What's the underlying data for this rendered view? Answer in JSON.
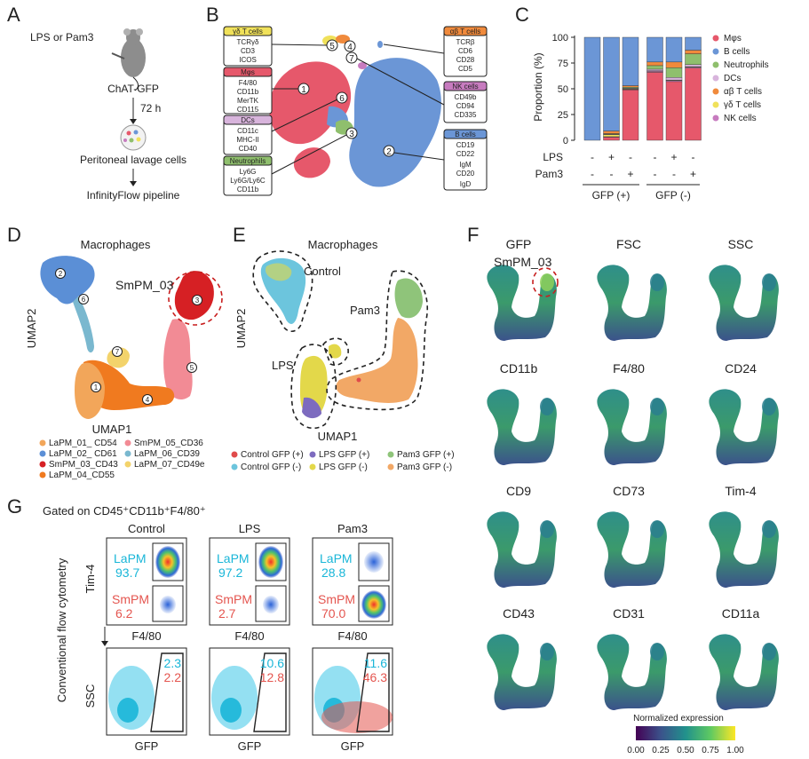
{
  "panel_labels": {
    "A": "A",
    "B": "B",
    "C": "C",
    "D": "D",
    "E": "E",
    "F": "F",
    "G": "G"
  },
  "panelA": {
    "stimulus": "LPS or Pam3",
    "mouse": "ChAT-GFP",
    "time": "72 h",
    "sample": "Peritoneal lavage cells",
    "pipeline": "InfinityFlow pipeline"
  },
  "panelB": {
    "boxes": [
      {
        "title": "γδ T cells",
        "markers": [
          "TCRγδ",
          "CD3",
          "ICOS"
        ],
        "color": "#f0e15a"
      },
      {
        "title": "Mφs",
        "markers": [
          "F4/80",
          "CD11b",
          "MerTK",
          "CD115"
        ],
        "color": "#e6586b"
      },
      {
        "title": "DCs",
        "markers": [
          "CD11c",
          "MHC-II",
          "CD40"
        ],
        "color": "#d8b4dc"
      },
      {
        "title": "Neutrophils",
        "markers": [
          "Ly6G",
          "Ly6G/Ly6C",
          "CD11b"
        ],
        "color": "#8fbf6d"
      },
      {
        "title": "αβ T cells",
        "markers": [
          "TCRβ",
          "CD6",
          "CD28",
          "CD5"
        ],
        "color": "#f08a3c"
      },
      {
        "title": "NK cells",
        "markers": [
          "CD49b",
          "CD94",
          "CD335"
        ],
        "color": "#c77bbf"
      },
      {
        "title": "B cells",
        "markers": [
          "CD19",
          "CD22",
          "IgM",
          "CD20",
          "IgD"
        ],
        "color": "#6b96d6"
      }
    ],
    "cluster_ids": [
      "1",
      "2",
      "3",
      "4",
      "5",
      "6",
      "7"
    ]
  },
  "chart_data": [
    {
      "type": "bar",
      "stacked": true,
      "title": "",
      "ylabel": "Proportion (%)",
      "ylim": [
        0,
        100
      ],
      "yticks": [
        "0",
        "25",
        "50",
        "75",
        "100"
      ],
      "condition_rows": [
        {
          "label": "LPS",
          "values": [
            "-",
            "+",
            "-",
            "-",
            "+",
            "-"
          ]
        },
        {
          "label": "Pam3",
          "values": [
            "-",
            "-",
            "+",
            "-",
            "-",
            "+"
          ]
        }
      ],
      "groups": [
        "GFP (+)",
        "GFP (-)"
      ],
      "legend": [
        {
          "name": "Mφs",
          "color": "#e6586b"
        },
        {
          "name": "B cells",
          "color": "#6b96d6"
        },
        {
          "name": "Neutrophils",
          "color": "#8fbf6d"
        },
        {
          "name": "DCs",
          "color": "#d8b4dc"
        },
        {
          "name": "αβ T cells",
          "color": "#f08a3c"
        },
        {
          "name": "γδ T cells",
          "color": "#f0e15a"
        },
        {
          "name": "NK cells",
          "color": "#c77bbf"
        }
      ],
      "bars": [
        {
          "Mφs": 0,
          "NK cells": 0,
          "γδ T cells": 0,
          "DCs": 0,
          "Neutrophils": 0,
          "αβ T cells": 0,
          "B cells": 100
        },
        {
          "Mφs": 3,
          "NK cells": 0.5,
          "γδ T cells": 2,
          "DCs": 0.5,
          "Neutrophils": 0.5,
          "αβ T cells": 2.5,
          "B cells": 91
        },
        {
          "Mφs": 49,
          "NK cells": 0.5,
          "γδ T cells": 0.5,
          "DCs": 0.5,
          "Neutrophils": 1,
          "αβ T cells": 1.5,
          "B cells": 47
        },
        {
          "Mφs": 66,
          "NK cells": 1,
          "γδ T cells": 0.5,
          "DCs": 1.5,
          "Neutrophils": 3.5,
          "αβ T cells": 3.5,
          "B cells": 24
        },
        {
          "Mφs": 57,
          "NK cells": 1,
          "γδ T cells": 0.5,
          "DCs": 2.5,
          "Neutrophils": 9.5,
          "αβ T cells": 5.5,
          "B cells": 24
        },
        {
          "Mφs": 70,
          "NK cells": 1,
          "γδ T cells": 0.5,
          "DCs": 2,
          "Neutrophils": 10.5,
          "αβ T cells": 3.5,
          "B cells": 12.5
        }
      ]
    },
    {
      "type": "scatter",
      "title": "Macrophages",
      "xlabel": "UMAP1",
      "ylabel": "UMAP2",
      "note": "UMAP embedding colored by cluster; point coordinates not readable"
    }
  ],
  "panelD": {
    "title": "Macrophages",
    "xlabel": "UMAP1",
    "ylabel": "UMAP2",
    "highlight": "SmPM_03",
    "cluster_ids": [
      "1",
      "2",
      "3",
      "4",
      "5",
      "6",
      "7"
    ],
    "legend": [
      {
        "label": "LaPM_01_ CD54",
        "color": "#f2a65a"
      },
      {
        "label": "SmPM_05_CD36",
        "color": "#f28b95"
      },
      {
        "label": "LaPM_02_ CD61",
        "color": "#5b8fd6"
      },
      {
        "label": "LaPM_06_CD39",
        "color": "#7ab8cf"
      },
      {
        "label": "SmPM_03_CD43",
        "color": "#d62024"
      },
      {
        "label": "LaPM_07_CD49e",
        "color": "#f3d36b"
      },
      {
        "label": "LaPM_04_CD55",
        "color": "#f07a1f"
      }
    ]
  },
  "panelE": {
    "title": "Macrophages",
    "xlabel": "UMAP1",
    "ylabel": "UMAP2",
    "regions": [
      "Control",
      "Pam3",
      "LPS"
    ],
    "legend": [
      {
        "label": "Control GFP (+)",
        "color": "#e04b4b"
      },
      {
        "label": "LPS GFP (+)",
        "color": "#7d6bbf"
      },
      {
        "label": "Pam3 GFP (+)",
        "color": "#8fc47a"
      },
      {
        "label": "Control GFP (-)",
        "color": "#6cc5dd"
      },
      {
        "label": "LPS GFP (-)",
        "color": "#e3d84a"
      },
      {
        "label": "Pam3 GFP (-)",
        "color": "#f2a866"
      }
    ]
  },
  "panelF": {
    "markers": [
      "GFP",
      "FSC",
      "SSC",
      "CD11b",
      "F4/80",
      "CD24",
      "CD9",
      "CD73",
      "Tim-4",
      "CD43",
      "CD31",
      "CD11a"
    ],
    "highlight": "SmPM_03",
    "colorbar_title": "Normalized expression",
    "colorbar_ticks": [
      "0.00",
      "0.25",
      "0.50",
      "0.75",
      "1.00"
    ]
  },
  "panelG": {
    "title": "Gated on CD45⁺CD11b⁺F4/80⁺",
    "side_label": "Conventional flow cytometry",
    "conditions": [
      "Control",
      "LPS",
      "Pam3"
    ],
    "top_ylabel": "Tim-4",
    "top_xlabel": "F4/80",
    "bottom_ylabel": "SSC",
    "bottom_xlabel": "GFP",
    "lapm_label": "LaPM",
    "smpm_label": "SmPM",
    "lapm": [
      "93.7",
      "97.2",
      "28.8"
    ],
    "smpm": [
      "6.2",
      "2.7",
      "70.0"
    ],
    "gfp_lapm": [
      "2.3",
      "10.6",
      "11.6"
    ],
    "gfp_smpm": [
      "2.2",
      "12.8",
      "46.3"
    ]
  }
}
